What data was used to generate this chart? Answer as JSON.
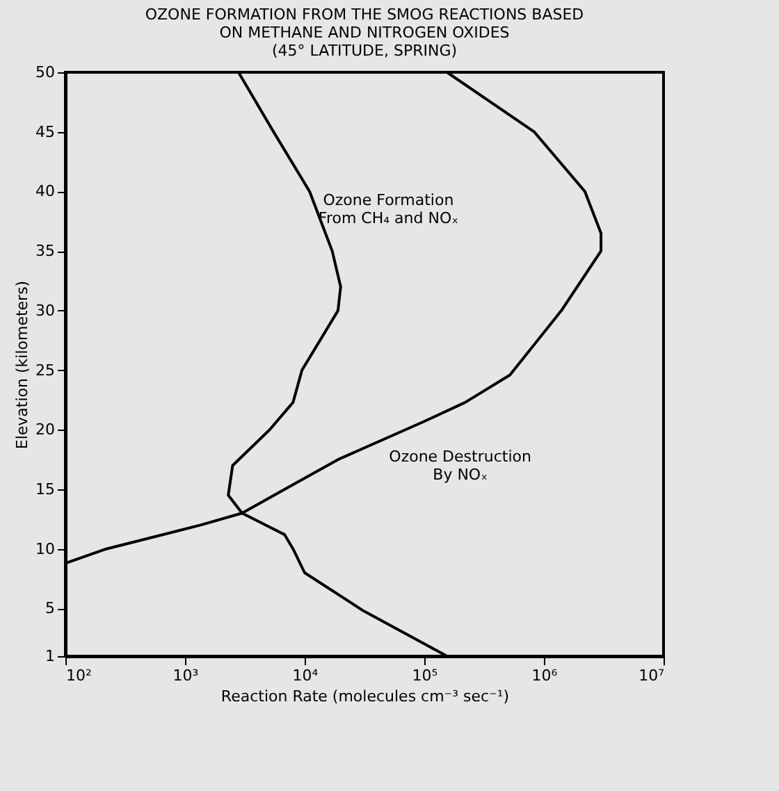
{
  "chart_data": {
    "type": "line",
    "title": "OZONE FORMATION FROM THE SMOG REACTIONS BASED\nON METHANE AND NITROGEN OXIDES\n(45° LATITUDE, SPRING)",
    "xlabel": "Reaction Rate (molecules cm⁻³ sec⁻¹)",
    "ylabel": "Elevation (kilometers)",
    "log": "x",
    "grid": false,
    "marker": "none",
    "line_style": "solid",
    "xlim": [
      100,
      10000000
    ],
    "xticks": [
      {
        "value": 100,
        "label": "10²"
      },
      {
        "value": 1000,
        "label": "10³"
      },
      {
        "value": 10000,
        "label": "10⁴"
      },
      {
        "value": 100000,
        "label": "10⁵"
      },
      {
        "value": 1000000,
        "label": "10⁶"
      },
      {
        "value": 10000000,
        "label": "10⁷"
      }
    ],
    "ylim": [
      1,
      50
    ],
    "yticks": [
      1,
      5,
      10,
      15,
      20,
      25,
      30,
      35,
      40,
      45,
      50
    ],
    "series": [
      {
        "color": "#000000",
        "x": [
          2800,
          5500,
          11000,
          17000,
          20000,
          19000,
          9500,
          8000,
          5100,
          2500,
          2300,
          3000,
          6800,
          8000,
          10000,
          31000,
          155000
        ],
        "values": [
          50,
          45,
          40,
          35,
          32,
          30,
          25,
          22.3,
          20,
          17,
          14.5,
          13,
          11.2,
          10,
          8,
          4.8,
          1
        ]
      },
      {
        "color": "#000000",
        "x": [
          100,
          220,
          1350,
          3000,
          6800,
          19000,
          100000,
          220000,
          520000,
          1400000,
          3000000,
          3000000,
          2200000,
          830000,
          155000
        ],
        "values": [
          8.8,
          10,
          12,
          13,
          15,
          17.5,
          20.7,
          22.3,
          24.6,
          30,
          35,
          36.5,
          40,
          45,
          50
        ]
      }
    ],
    "annotations": [
      "Ozone Formation\nFrom CH₄ and NOₓ",
      "Ozone Destruction\nBy NOₓ"
    ]
  }
}
